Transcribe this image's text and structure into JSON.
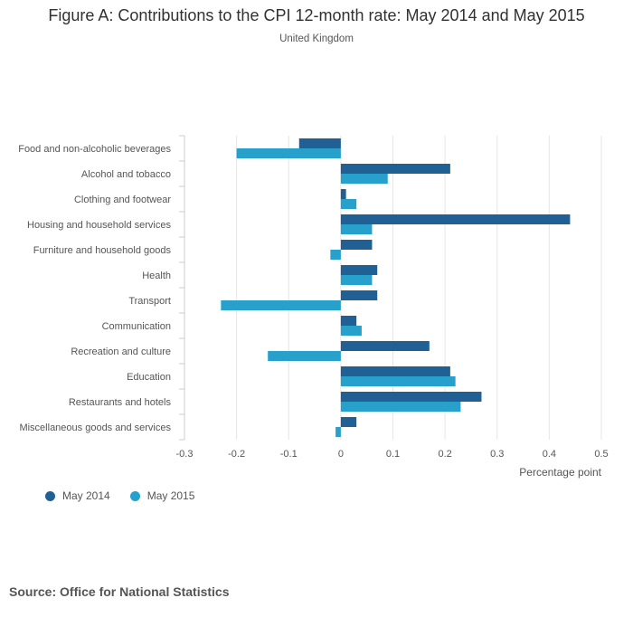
{
  "chart_data": {
    "type": "bar",
    "orientation": "horizontal",
    "title": "Figure A: Contributions to the CPI 12-month rate: May 2014 and May 2015",
    "subtitle": "United Kingdom",
    "xlabel": "Percentage point",
    "ylabel": "",
    "xlim": [
      -0.3,
      0.5
    ],
    "xticks": [
      -0.3,
      -0.2,
      -0.1,
      0,
      0.1,
      0.2,
      0.3,
      0.4,
      0.5
    ],
    "xtick_labels": [
      "-0.3",
      "-0.2",
      "-0.1",
      "0",
      "0.1",
      "0.2",
      "0.3",
      "0.4",
      "0.5"
    ],
    "grid": true,
    "legend_position": "bottom-left",
    "categories": [
      "Food and non-alcoholic beverages",
      "Alcohol and tobacco",
      "Clothing and footwear",
      "Housing and household services",
      "Furniture and household goods",
      "Health",
      "Transport",
      "Communication",
      "Recreation and culture",
      "Education",
      "Restaurants and hotels",
      "Miscellaneous goods and services"
    ],
    "series": [
      {
        "name": "May 2014",
        "color": "#206095",
        "values": [
          -0.08,
          0.21,
          0.01,
          0.44,
          0.06,
          0.07,
          0.07,
          0.03,
          0.17,
          0.21,
          0.27,
          0.03
        ]
      },
      {
        "name": "May 2015",
        "color": "#27a0cc",
        "values": [
          -0.2,
          0.09,
          0.03,
          0.06,
          -0.02,
          0.06,
          -0.23,
          0.04,
          -0.14,
          0.22,
          0.23,
          -0.01
        ]
      }
    ]
  },
  "source": "Source: Office for National Statistics"
}
